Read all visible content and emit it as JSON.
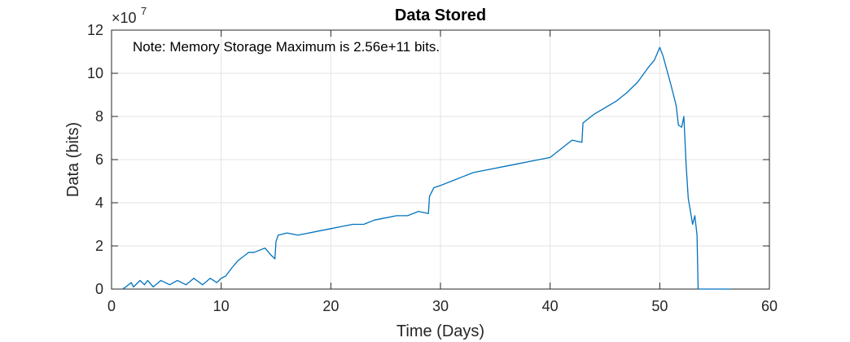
{
  "chart_data": {
    "type": "line",
    "title": "Data Stored",
    "xlabel": "Time (Days)",
    "ylabel": "Data (bits)",
    "exponent": {
      "base": "×10",
      "power": "7"
    },
    "annotation": "Note: Memory Storage Maximum is 2.56e+11 bits.",
    "xlim": [
      0,
      60
    ],
    "ylim": [
      0,
      12
    ],
    "xticks": [
      0,
      10,
      20,
      30,
      40,
      50,
      60
    ],
    "yticks": [
      0,
      2,
      4,
      6,
      8,
      10,
      12
    ],
    "grid": true,
    "line_color": "#0072BD",
    "series": [
      {
        "x": [
          1,
          1.3,
          1.8,
          2.0,
          2.6,
          3.0,
          3.3,
          3.8,
          4.5,
          5.3,
          6.0,
          6.8,
          7.5,
          8.3,
          9.0,
          9.6,
          10.0,
          10.4,
          11.0,
          11.5,
          12.0,
          12.5,
          13.0,
          13.5,
          14.0,
          14.5,
          14.9,
          15.0,
          15.2,
          16.0,
          17.0,
          18.0,
          19.0,
          20.0,
          21.0,
          22.0,
          23.0,
          24.0,
          25.0,
          26.0,
          27.0,
          28.0,
          28.9,
          29.0,
          29.4,
          30.0,
          31.0,
          32.0,
          33.0,
          34.0,
          35.0,
          36.0,
          37.0,
          38.0,
          39.0,
          40.0,
          41.0,
          42.0,
          42.9,
          43.0,
          43.5,
          44.0,
          45.0,
          46.0,
          47.0,
          48.0,
          49.0,
          49.5,
          50.0,
          50.3,
          51.0,
          51.5,
          51.7,
          52.0,
          52.2,
          52.4,
          52.6,
          53.0,
          53.2,
          53.4,
          53.5,
          54.0,
          55.0,
          56.0,
          56.5
        ],
        "y": [
          0,
          0.1,
          0.3,
          0.1,
          0.4,
          0.2,
          0.4,
          0.1,
          0.4,
          0.2,
          0.4,
          0.2,
          0.5,
          0.2,
          0.5,
          0.3,
          0.5,
          0.6,
          1.0,
          1.3,
          1.5,
          1.7,
          1.7,
          1.8,
          1.9,
          1.6,
          1.4,
          2.2,
          2.5,
          2.6,
          2.5,
          2.6,
          2.7,
          2.8,
          2.9,
          3.0,
          3.0,
          3.2,
          3.3,
          3.4,
          3.4,
          3.6,
          3.5,
          4.3,
          4.7,
          4.8,
          5.0,
          5.2,
          5.4,
          5.5,
          5.6,
          5.7,
          5.8,
          5.9,
          6.0,
          6.1,
          6.5,
          6.9,
          6.8,
          7.7,
          7.9,
          8.1,
          8.4,
          8.7,
          9.1,
          9.6,
          10.3,
          10.6,
          11.2,
          10.8,
          9.5,
          8.5,
          7.6,
          7.5,
          8.0,
          5.8,
          4.2,
          3.0,
          3.4,
          2.5,
          0,
          0,
          0,
          0,
          0
        ]
      }
    ]
  }
}
